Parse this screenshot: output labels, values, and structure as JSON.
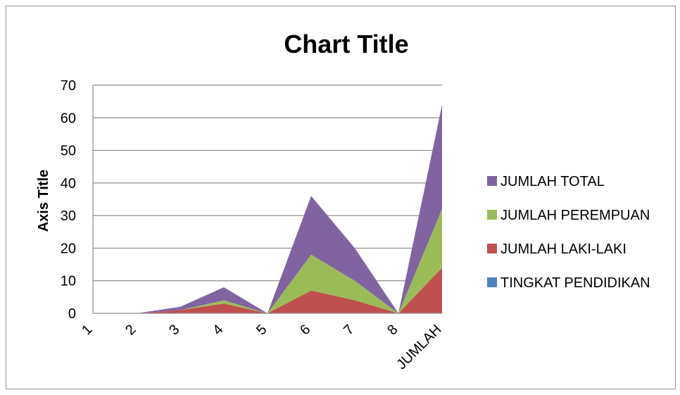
{
  "chart_data": {
    "type": "area",
    "stacked": true,
    "title": "Chart Title",
    "ylabel": "Axis Title",
    "xlabel": "",
    "categories": [
      "1",
      "2",
      "3",
      "4",
      "5",
      "6",
      "7",
      "8",
      "JUMLAH"
    ],
    "ylim": [
      0,
      70
    ],
    "yticks": [
      0,
      10,
      20,
      30,
      40,
      50,
      60,
      70
    ],
    "grid": true,
    "legend_position": "right",
    "series": [
      {
        "name": "TINGKAT PENDIDIKAN",
        "color": "#4f81bd",
        "values": [
          0,
          0,
          0,
          0,
          0,
          0,
          0,
          0,
          0
        ]
      },
      {
        "name": "JUMLAH LAKI-LAKI",
        "color": "#c0504d",
        "values": [
          0,
          0,
          1,
          3,
          0,
          7,
          4,
          0,
          14
        ]
      },
      {
        "name": "JUMLAH PEREMPUAN",
        "color": "#9bbb59",
        "values": [
          0,
          0,
          0,
          1,
          0,
          11,
          6,
          0,
          18
        ]
      },
      {
        "name": "JUMLAH TOTAL",
        "color": "#8064a2",
        "values": [
          0,
          0,
          1,
          4,
          0,
          18,
          10,
          0,
          32
        ]
      }
    ]
  }
}
